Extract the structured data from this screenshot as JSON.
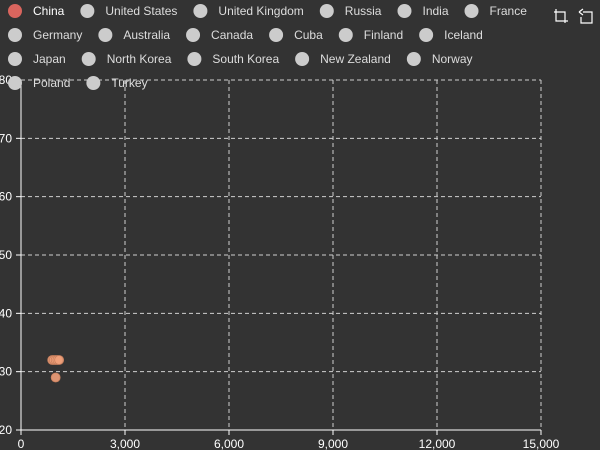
{
  "chart_data": {
    "type": "scatter",
    "title": "",
    "xlabel": "",
    "ylabel": "",
    "xlim": [
      0,
      15000
    ],
    "ylim": [
      20,
      80
    ],
    "x_ticks": [
      0,
      3000,
      6000,
      9000,
      12000,
      15000
    ],
    "x_tick_labels": [
      "0",
      "3,000",
      "6,000",
      "9,000",
      "12,000",
      "15,000"
    ],
    "y_ticks": [
      20,
      30,
      40,
      50,
      60,
      70,
      80
    ],
    "y_tick_labels": [
      "20",
      "30",
      "40",
      "50",
      "60",
      "70",
      "80"
    ],
    "grid": true,
    "legend_position": "top",
    "series": [
      {
        "name": "China",
        "active": true,
        "color": "#f0a07a",
        "legend_color": "#d9655e",
        "points": [
          [
            900,
            32
          ],
          [
            950,
            32
          ],
          [
            1000,
            32
          ],
          [
            1050,
            32
          ],
          [
            1100,
            32
          ],
          [
            1000,
            29
          ]
        ]
      },
      {
        "name": "United States",
        "active": false,
        "points": []
      },
      {
        "name": "United Kingdom",
        "active": false,
        "points": []
      },
      {
        "name": "Russia",
        "active": false,
        "points": []
      },
      {
        "name": "India",
        "active": false,
        "points": []
      },
      {
        "name": "France",
        "active": false,
        "points": []
      },
      {
        "name": "Germany",
        "active": false,
        "points": []
      },
      {
        "name": "Australia",
        "active": false,
        "points": []
      },
      {
        "name": "Canada",
        "active": false,
        "points": []
      },
      {
        "name": "Cuba",
        "active": false,
        "points": []
      },
      {
        "name": "Finland",
        "active": false,
        "points": []
      },
      {
        "name": "Iceland",
        "active": false,
        "points": []
      },
      {
        "name": "Japan",
        "active": false,
        "points": []
      },
      {
        "name": "North Korea",
        "active": false,
        "points": []
      },
      {
        "name": "South Korea",
        "active": false,
        "points": []
      },
      {
        "name": "New Zealand",
        "active": false,
        "points": []
      },
      {
        "name": "Norway",
        "active": false,
        "points": []
      },
      {
        "name": "Poland",
        "active": false,
        "points": []
      },
      {
        "name": "Turkey",
        "active": false,
        "points": []
      }
    ]
  },
  "toolbox": {
    "icons": [
      "data-zoom-icon",
      "restore-icon"
    ]
  },
  "colors": {
    "background": "#333333",
    "axis": "#ffffff",
    "grid": "#cfcfcf",
    "legend_inactive": "#cccccc",
    "text_active": "#ffffff",
    "text_inactive": "#dddddd"
  }
}
